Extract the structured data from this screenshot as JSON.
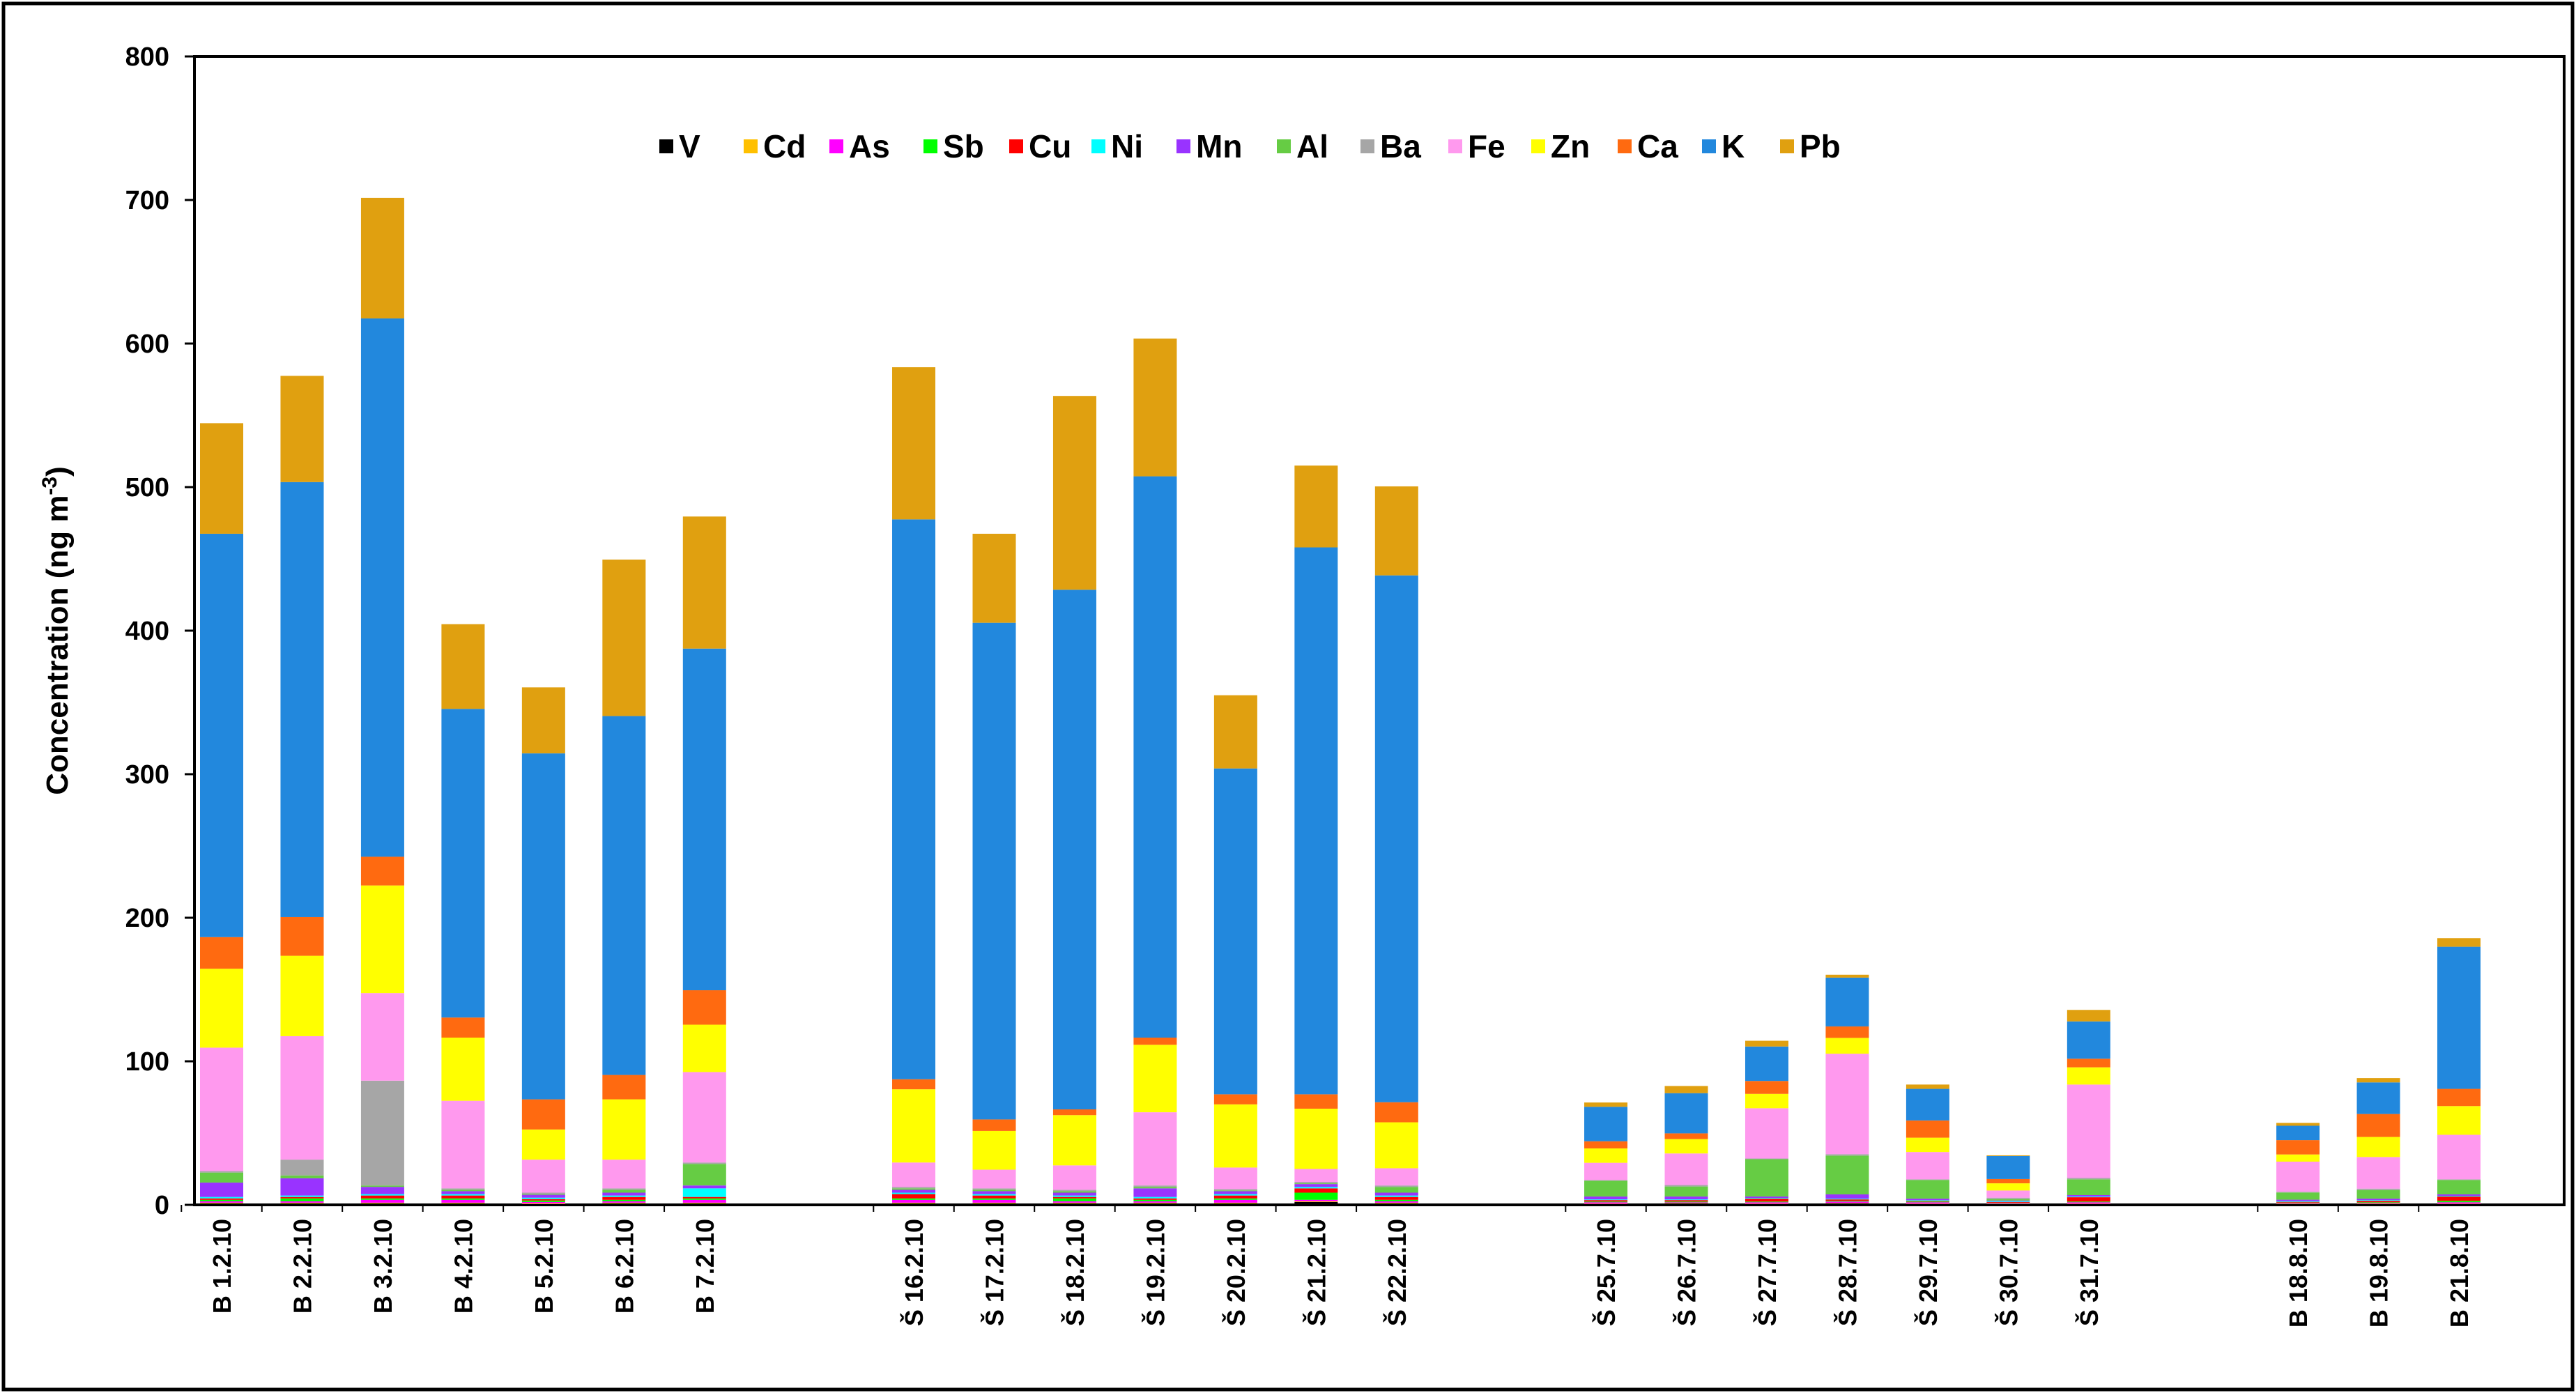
{
  "chart_data": {
    "type": "bar",
    "stacked": true,
    "title": "",
    "xlabel": "",
    "ylabel": "Concentration (ng m",
    "ylabel_sup": "-3",
    "ylabel_close": ")",
    "ylim": [
      0,
      800
    ],
    "yticks": [
      0,
      100,
      200,
      300,
      400,
      500,
      600,
      700,
      800
    ],
    "legend_position": "top-center",
    "groups": [
      [
        "B 1.2.10",
        "B  2.2.10",
        "B  3.2.10",
        "B  4.2.10",
        "B  5.2.10",
        "B  6.2.10",
        "B  7.2.10"
      ],
      [
        "Š  16.2.10",
        "Š  17.2.10",
        "Š  18.2.10",
        "Š 19.2.10",
        "Š  20.2.10",
        "Š  21.2.10",
        "Š  22.2.10"
      ],
      [
        "Š  25.7.10",
        "Š  26.7.10",
        "Š  27.7.10",
        "Š  28.7.10",
        "Š  29.7.10",
        "Š  30.7.10",
        "Š  31.7.10"
      ],
      [
        "B  18.8.10",
        "B  19.8.10",
        "B  21.8.10"
      ]
    ],
    "categories": [
      "B 1.2.10",
      "B  2.2.10",
      "B  3.2.10",
      "B  4.2.10",
      "B  5.2.10",
      "B  6.2.10",
      "B  7.2.10",
      "Š  16.2.10",
      "Š  17.2.10",
      "Š  18.2.10",
      "Š 19.2.10",
      "Š  20.2.10",
      "Š  21.2.10",
      "Š  22.2.10",
      "Š  25.7.10",
      "Š  26.7.10",
      "Š  27.7.10",
      "Š  28.7.10",
      "Š  29.7.10",
      "Š  30.7.10",
      "Š  31.7.10",
      "B  18.8.10",
      "B  19.8.10",
      "B  21.8.10"
    ],
    "series": [
      {
        "name": "V",
        "color": "#000000",
        "values": [
          1,
          1,
          1,
          1,
          0.5,
          1,
          1,
          1,
          1,
          1,
          1,
          1,
          2,
          1,
          0.5,
          1,
          0.5,
          1,
          0.5,
          0.5,
          0.5,
          0.5,
          0.5,
          0.5
        ]
      },
      {
        "name": "Cd",
        "color": "#FFC000",
        "values": [
          0.5,
          0.5,
          0.5,
          0.5,
          0.5,
          0.5,
          0.5,
          0.5,
          0.5,
          0.5,
          0.5,
          0.5,
          0.5,
          0.5,
          0.3,
          0.3,
          0.3,
          0.3,
          0.3,
          0.2,
          0.3,
          0.3,
          0.3,
          0.3
        ]
      },
      {
        "name": "As",
        "color": "#FF00FF",
        "values": [
          1,
          1,
          2,
          2,
          1,
          1,
          2,
          2,
          2,
          1,
          1,
          2,
          1,
          1,
          1,
          0.5,
          1,
          1,
          1,
          0.5,
          1,
          0.5,
          0.5,
          1
        ]
      },
      {
        "name": "Sb",
        "color": "#00FF00",
        "values": [
          1,
          2,
          1,
          1,
          1,
          1,
          1,
          1,
          1,
          2,
          1,
          1,
          5,
          1,
          0.5,
          0.5,
          0.5,
          0.5,
          0.5,
          0.3,
          0.5,
          0.3,
          0.5,
          1
        ]
      },
      {
        "name": "Cu",
        "color": "#FF0000",
        "values": [
          1,
          1,
          2,
          2,
          1,
          2,
          1,
          3,
          2,
          1,
          1,
          2,
          3,
          2,
          1,
          1,
          2,
          1,
          0.5,
          0.5,
          3,
          0.5,
          1,
          3
        ]
      },
      {
        "name": "Ni",
        "color": "#00FFFF",
        "values": [
          1,
          1,
          1,
          1,
          1,
          1,
          6,
          1,
          1,
          1,
          1,
          1,
          1,
          1,
          0.5,
          0.5,
          0.5,
          0.5,
          0.5,
          0.5,
          0.5,
          0.5,
          0.5,
          0.5
        ]
      },
      {
        "name": "Mn",
        "color": "#9933FF",
        "values": [
          10,
          12,
          5,
          2,
          2,
          2,
          2,
          2,
          2,
          2,
          6,
          2,
          2,
          2,
          2,
          2,
          1,
          3,
          1,
          0.5,
          1,
          1,
          1,
          1
        ]
      },
      {
        "name": "Al",
        "color": "#66CC44",
        "values": [
          7,
          2,
          1,
          1,
          0.5,
          2,
          15,
          1,
          1,
          1,
          1,
          0.5,
          0.5,
          4,
          11,
          7,
          26,
          27,
          13,
          1,
          11,
          5,
          6,
          10
        ]
      },
      {
        "name": "Ba",
        "color": "#A6A6A6",
        "values": [
          1,
          11,
          73,
          1,
          1,
          1,
          1,
          1,
          1,
          1,
          1,
          1,
          1,
          1,
          0.5,
          1,
          0.5,
          1,
          0.5,
          1,
          1,
          0.5,
          1,
          0.5
        ]
      },
      {
        "name": "Fe",
        "color": "#FF99EE",
        "values": [
          86,
          86,
          61,
          61,
          23,
          20,
          63,
          17,
          13,
          17,
          51,
          15,
          9,
          12,
          12,
          22,
          35,
          70,
          19,
          5,
          65,
          21,
          22,
          31
        ]
      },
      {
        "name": "Zn",
        "color": "#FFFF00",
        "values": [
          55,
          56,
          75,
          44,
          21,
          42,
          33,
          51,
          27,
          35,
          47,
          44,
          42,
          32,
          10,
          10,
          10,
          11,
          10,
          5,
          12,
          5,
          14,
          20
        ]
      },
      {
        "name": "Ca",
        "color": "#FF6A10",
        "values": [
          22,
          27,
          20,
          14,
          21,
          17,
          24,
          7,
          8,
          4,
          5,
          7,
          10,
          14,
          5,
          4,
          9,
          8,
          12,
          3,
          6,
          10,
          16,
          12
        ]
      },
      {
        "name": "K",
        "color": "#2288DD",
        "values": [
          281,
          303,
          375,
          215,
          241,
          250,
          238,
          390,
          346,
          362,
          391,
          227,
          381,
          367,
          24,
          28,
          24,
          34,
          22,
          16,
          26,
          10,
          22,
          99
        ]
      },
      {
        "name": "Pb",
        "color": "#E0A010",
        "values": [
          77,
          74,
          84,
          59,
          46,
          109,
          92,
          106,
          62,
          135,
          96,
          51,
          57,
          62,
          3,
          5,
          4,
          2,
          3,
          0.5,
          8,
          2,
          3,
          6
        ]
      }
    ]
  }
}
